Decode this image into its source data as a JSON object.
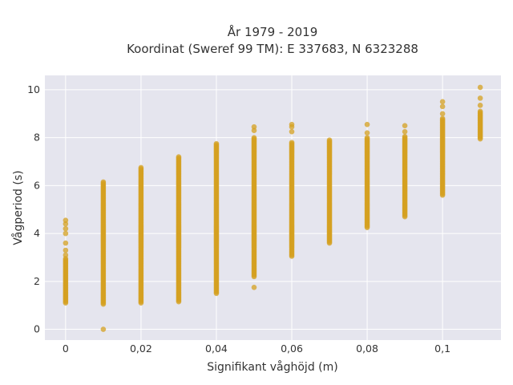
{
  "chart_data": {
    "type": "scatter",
    "title_lines": [
      "År 1979 - 2019",
      "Koordinat (Sweref 99 TM): E 337683, N 6323288"
    ],
    "xlabel": "Signifikant våghöjd (m)",
    "ylabel": "Vågperiod (s)",
    "xlim": [
      -0.0055,
      0.1155
    ],
    "ylim": [
      -0.45,
      10.6
    ],
    "xticks": [
      0,
      0.02,
      0.04,
      0.06,
      0.08,
      0.1
    ],
    "xtick_labels": [
      "0",
      "0,02",
      "0,04",
      "0,06",
      "0,08",
      "0,1"
    ],
    "yticks": [
      0,
      2,
      4,
      6,
      8,
      10
    ],
    "ytick_labels": [
      "0",
      "2",
      "4",
      "6",
      "8",
      "10"
    ],
    "grid": true,
    "colors": {
      "marker": "#d4a020",
      "plot_bg": "#e5e5ee",
      "grid": "#ffffff"
    },
    "columns": [
      {
        "x": 0,
        "y_range": [
          1.1,
          2.95
        ],
        "extra_y": [
          3.1,
          3.3,
          3.6,
          4.0,
          4.2,
          4.4,
          4.55
        ]
      },
      {
        "x": 0.01,
        "y_range": [
          1.05,
          6.15
        ],
        "extra_y": [
          0.0
        ]
      },
      {
        "x": 0.02,
        "y_range": [
          1.1,
          6.75
        ],
        "extra_y": []
      },
      {
        "x": 0.03,
        "y_range": [
          1.15,
          7.2
        ],
        "extra_y": []
      },
      {
        "x": 0.04,
        "y_range": [
          1.5,
          7.75
        ],
        "extra_y": []
      },
      {
        "x": 0.05,
        "y_range": [
          2.2,
          8.0
        ],
        "extra_y": [
          1.75,
          8.3,
          8.45
        ]
      },
      {
        "x": 0.06,
        "y_range": [
          3.05,
          7.8
        ],
        "extra_y": [
          8.25,
          8.45,
          8.55
        ]
      },
      {
        "x": 0.07,
        "y_range": [
          3.6,
          7.9
        ],
        "extra_y": []
      },
      {
        "x": 0.08,
        "y_range": [
          4.25,
          8.0
        ],
        "extra_y": [
          8.2,
          8.55
        ]
      },
      {
        "x": 0.09,
        "y_range": [
          4.7,
          8.05
        ],
        "extra_y": [
          8.25,
          8.5
        ]
      },
      {
        "x": 0.1,
        "y_range": [
          5.6,
          8.8
        ],
        "extra_y": [
          9.0,
          9.3,
          9.5
        ]
      },
      {
        "x": 0.11,
        "y_range": [
          7.95,
          9.1
        ],
        "extra_y": [
          9.35,
          9.65,
          10.1
        ]
      }
    ]
  }
}
